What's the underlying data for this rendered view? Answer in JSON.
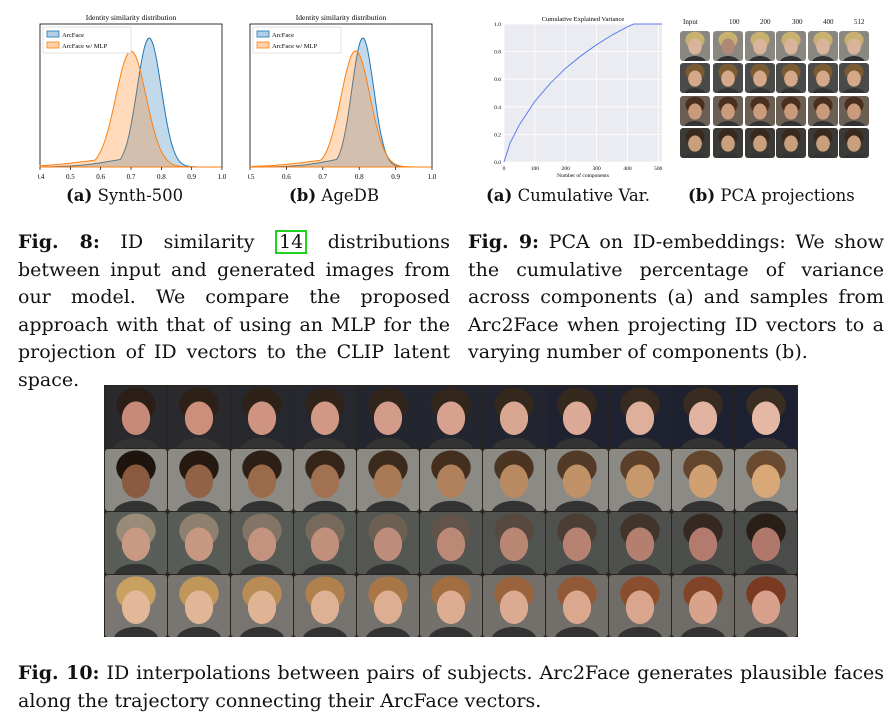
{
  "fig8": {
    "charts": [
      {
        "type": "area",
        "title": "Identity similarity distribution",
        "legend": [
          "ArcFace",
          "ArcFace w/ MLP"
        ],
        "legend_position": "top-left",
        "x_ticks": [
          "0.4",
          "0.5",
          "0.6",
          "0.7",
          "0.8",
          "0.9",
          "1.0"
        ],
        "xlim": [
          0.4,
          1.0
        ],
        "series": [
          {
            "name": "ArcFace",
            "color": "#1f77b4",
            "mean": 0.76,
            "std": 0.04
          },
          {
            "name": "ArcFace w/ MLP",
            "color": "#ff7f0e",
            "mean": 0.7,
            "std": 0.05
          }
        ]
      },
      {
        "type": "area",
        "title": "Identity similarity distribution",
        "legend": [
          "ArcFace",
          "ArcFace w/ MLP"
        ],
        "legend_position": "top-left",
        "x_ticks": [
          "0.5",
          "0.6",
          "0.7",
          "0.8",
          "0.9",
          "1.0"
        ],
        "xlim": [
          0.5,
          1.0
        ],
        "series": [
          {
            "name": "ArcFace",
            "color": "#1f77b4",
            "mean": 0.81,
            "std": 0.03
          },
          {
            "name": "ArcFace w/ MLP",
            "color": "#ff7f0e",
            "mean": 0.79,
            "std": 0.04
          }
        ]
      }
    ],
    "sublabels": [
      {
        "letter": "(a)",
        "text": "Synth-500"
      },
      {
        "letter": "(b)",
        "text": "AgeDB"
      }
    ],
    "caption": {
      "label": "Fig. 8:",
      "before": "ID similarity",
      "cite": "14",
      "after": "distributions between input and generated images from our model. We compare the proposed approach with that of using an MLP for the projection of ID vectors to the CLIP latent space."
    }
  },
  "fig9": {
    "chart": {
      "type": "line",
      "title": "Cumulative Explained Variance",
      "xlabel": "Number of components",
      "x_ticks": [
        "0",
        "100",
        "200",
        "300",
        "400",
        "500"
      ],
      "y_ticks": [
        "0.0",
        "0.2",
        "0.4",
        "0.6",
        "0.8",
        "1.0"
      ],
      "xlim": [
        0,
        512
      ],
      "ylim": [
        0,
        1.0
      ],
      "series": [
        {
          "name": "cumulative variance",
          "color": "#5b7ff0",
          "x": [
            0,
            20,
            50,
            100,
            150,
            200,
            250,
            300,
            350,
            400,
            420,
            450,
            512
          ],
          "y": [
            0.0,
            0.14,
            0.27,
            0.44,
            0.57,
            0.68,
            0.77,
            0.85,
            0.92,
            0.98,
            1.0,
            1.0,
            1.0
          ]
        }
      ]
    },
    "grid_labels": [
      "Input",
      "100",
      "200",
      "300",
      "400",
      "512"
    ],
    "sublabels": [
      {
        "letter": "(a)",
        "text": "Cumulative Var."
      },
      {
        "letter": "(b)",
        "text": "PCA projections"
      }
    ],
    "caption": {
      "label": "Fig. 9:",
      "text": "PCA on ID-embeddings: We show the cumulative percentage of variance across components (a) and samples from Arc2Face when projecting ID vectors to a varying number of components (b)."
    }
  },
  "fig10": {
    "caption": {
      "label": "Fig. 10:",
      "text": "ID interpolations between pairs of subjects. Arc2Face generates plausible faces along the trajectory connecting their ArcFace vectors."
    }
  }
}
